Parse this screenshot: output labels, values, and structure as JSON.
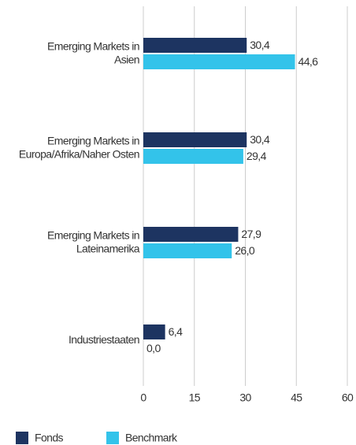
{
  "chart_data": {
    "type": "hbar",
    "categories": [
      [
        "Emerging Markets in",
        "Asien"
      ],
      [
        "Emerging Markets in",
        "Europa/Afrika/Naher Osten"
      ],
      [
        "Emerging Markets in",
        "Lateinamerika"
      ],
      [
        "Industriestaaten"
      ]
    ],
    "series": [
      {
        "name": "Fonds",
        "color": "#1d3461",
        "values": [
          30.4,
          30.4,
          27.9,
          6.4
        ],
        "value_labels": [
          "30,4",
          "30,4",
          "27,9",
          "6,4"
        ]
      },
      {
        "name": "Benchmark",
        "color": "#33c3ea",
        "values": [
          44.6,
          29.4,
          26.0,
          0.0
        ],
        "value_labels": [
          "44,6",
          "29,4",
          "26,0",
          "0,0"
        ]
      }
    ],
    "xlim": [
      0,
      60
    ],
    "xticks": [
      0,
      15,
      30,
      45,
      60
    ],
    "grid": true
  }
}
